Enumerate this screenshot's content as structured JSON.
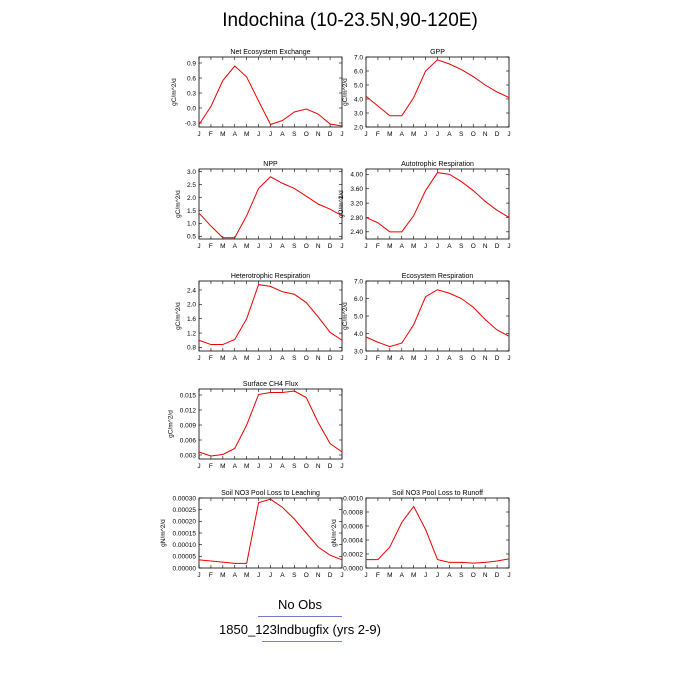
{
  "title": "Indochina (10-23.5N,90-120E)",
  "legend": {
    "obs_label": "No Obs",
    "model_label": "1850_123lndbugfix (yrs 2-9)",
    "model_color": "#ee0000"
  },
  "months": [
    "J",
    "F",
    "M",
    "A",
    "M",
    "J",
    "J",
    "A",
    "S",
    "O",
    "N",
    "D",
    "J"
  ],
  "chart_data": [
    {
      "type": "line",
      "title": "Net Ecosystem Exchange",
      "ylabel": "gC/m^2/d",
      "ylim": [
        -0.38,
        1.02
      ],
      "yticks": [
        -0.3,
        0.0,
        0.3,
        0.6,
        0.9
      ],
      "ytick_labels": [
        "-0.3",
        "0.0",
        "0.3",
        "0.6",
        "0.9"
      ],
      "series": [
        {
          "values": [
            -0.33,
            0.03,
            0.55,
            0.84,
            0.62,
            0.14,
            -0.33,
            -0.25,
            -0.08,
            -0.02,
            -0.12,
            -0.32,
            -0.36
          ]
        }
      ]
    },
    {
      "type": "line",
      "title": "GPP",
      "ylabel": "gC/m^2/d",
      "ylim": [
        2.0,
        7.0
      ],
      "yticks": [
        2.0,
        3.0,
        4.0,
        5.0,
        6.0,
        7.0
      ],
      "ytick_labels": [
        "2.0",
        "3.0",
        "4.0",
        "5.0",
        "6.0",
        "7.0"
      ],
      "series": [
        {
          "values": [
            4.2,
            3.5,
            2.8,
            2.8,
            4.1,
            6.0,
            6.8,
            6.5,
            6.1,
            5.6,
            5.0,
            4.5,
            4.1
          ]
        }
      ]
    },
    {
      "type": "line",
      "title": "NPP",
      "ylabel": "gC/m^2/d",
      "ylim": [
        0.4,
        3.1
      ],
      "yticks": [
        0.5,
        1.0,
        1.5,
        2.0,
        2.5,
        3.0
      ],
      "ytick_labels": [
        "0.5",
        "1.0",
        "1.5",
        "2.0",
        "2.5",
        "3.0"
      ],
      "series": [
        {
          "values": [
            1.4,
            0.9,
            0.45,
            0.45,
            1.3,
            2.35,
            2.8,
            2.55,
            2.35,
            2.05,
            1.75,
            1.55,
            1.3
          ]
        }
      ]
    },
    {
      "type": "line",
      "title": "Autotrophic Respiration",
      "ylabel": "gC/m^2/d",
      "ylim": [
        2.2,
        4.15
      ],
      "yticks": [
        2.4,
        2.8,
        3.2,
        3.6,
        4.0
      ],
      "ytick_labels": [
        "2.40",
        "2.80",
        "3.20",
        "3.60",
        "4.00"
      ],
      "series": [
        {
          "values": [
            2.8,
            2.65,
            2.4,
            2.4,
            2.85,
            3.55,
            4.05,
            4.0,
            3.8,
            3.55,
            3.25,
            3.0,
            2.8
          ]
        }
      ]
    },
    {
      "type": "line",
      "title": "Heterotrophic Respiration",
      "ylabel": "gC/m^2/d",
      "ylim": [
        0.7,
        2.65
      ],
      "yticks": [
        0.8,
        1.2,
        1.6,
        2.0,
        2.4
      ],
      "ytick_labels": [
        "0.8",
        "1.2",
        "1.6",
        "2.0",
        "2.4"
      ],
      "series": [
        {
          "values": [
            1.0,
            0.88,
            0.88,
            1.02,
            1.6,
            2.55,
            2.5,
            2.35,
            2.28,
            2.05,
            1.65,
            1.22,
            1.0
          ]
        }
      ]
    },
    {
      "type": "line",
      "title": "Ecosystem Respiration",
      "ylabel": "gC/m^2/d",
      "ylim": [
        3.0,
        7.0
      ],
      "yticks": [
        3.0,
        4.0,
        5.0,
        6.0,
        7.0
      ],
      "ytick_labels": [
        "3.0",
        "4.0",
        "5.0",
        "6.0",
        "7.0"
      ],
      "series": [
        {
          "values": [
            3.8,
            3.5,
            3.25,
            3.45,
            4.5,
            6.1,
            6.5,
            6.3,
            6.0,
            5.5,
            4.8,
            4.2,
            3.85
          ]
        }
      ]
    },
    {
      "type": "line",
      "title": "Surface CH4 Flux",
      "ylabel": "gC/m^2/d",
      "ylim": [
        0.0022,
        0.0162
      ],
      "yticks": [
        0.003,
        0.006,
        0.009,
        0.012,
        0.015
      ],
      "ytick_labels": [
        "0.003",
        "0.006",
        "0.009",
        "0.012",
        "0.015"
      ],
      "series": [
        {
          "values": [
            0.0036,
            0.0028,
            0.0031,
            0.0043,
            0.009,
            0.0151,
            0.0155,
            0.0155,
            0.0158,
            0.0145,
            0.0095,
            0.0053,
            0.0036
          ]
        }
      ]
    },
    null,
    {
      "type": "line",
      "title": "Soil NO3 Pool Loss to Leaching",
      "ylabel": "gN/m^2/d",
      "ylim": [
        0.0,
        0.0003
      ],
      "yticks": [
        0.0,
        5e-05,
        0.0001,
        0.00015,
        0.0002,
        0.00025,
        0.0003
      ],
      "ytick_labels": [
        "0.00000",
        "0.00005",
        "0.00010",
        "0.00015",
        "0.00020",
        "0.00025",
        "0.00030"
      ],
      "series": [
        {
          "values": [
            3.5e-05,
            3e-05,
            2.5e-05,
            2e-05,
            2e-05,
            0.00028,
            0.000295,
            0.00026,
            0.00021,
            0.00015,
            9e-05,
            5.5e-05,
            3.5e-05
          ]
        }
      ]
    },
    {
      "type": "line",
      "title": "Soil NO3 Pool Loss to Runoff",
      "ylabel": "gN/m^2/d",
      "ylim": [
        0.0,
        0.001
      ],
      "yticks": [
        0.0,
        0.0002,
        0.0004,
        0.0006,
        0.0008,
        0.001
      ],
      "ytick_labels": [
        "0.0000",
        "0.0002",
        "0.0004",
        "0.0006",
        "0.0008",
        "0.0010"
      ],
      "series": [
        {
          "values": [
            0.00012,
            0.00012,
            0.0003,
            0.00065,
            0.00088,
            0.00055,
            0.00012,
            8e-05,
            8e-05,
            7e-05,
            8e-05,
            0.0001,
            0.00013
          ]
        }
      ]
    }
  ]
}
